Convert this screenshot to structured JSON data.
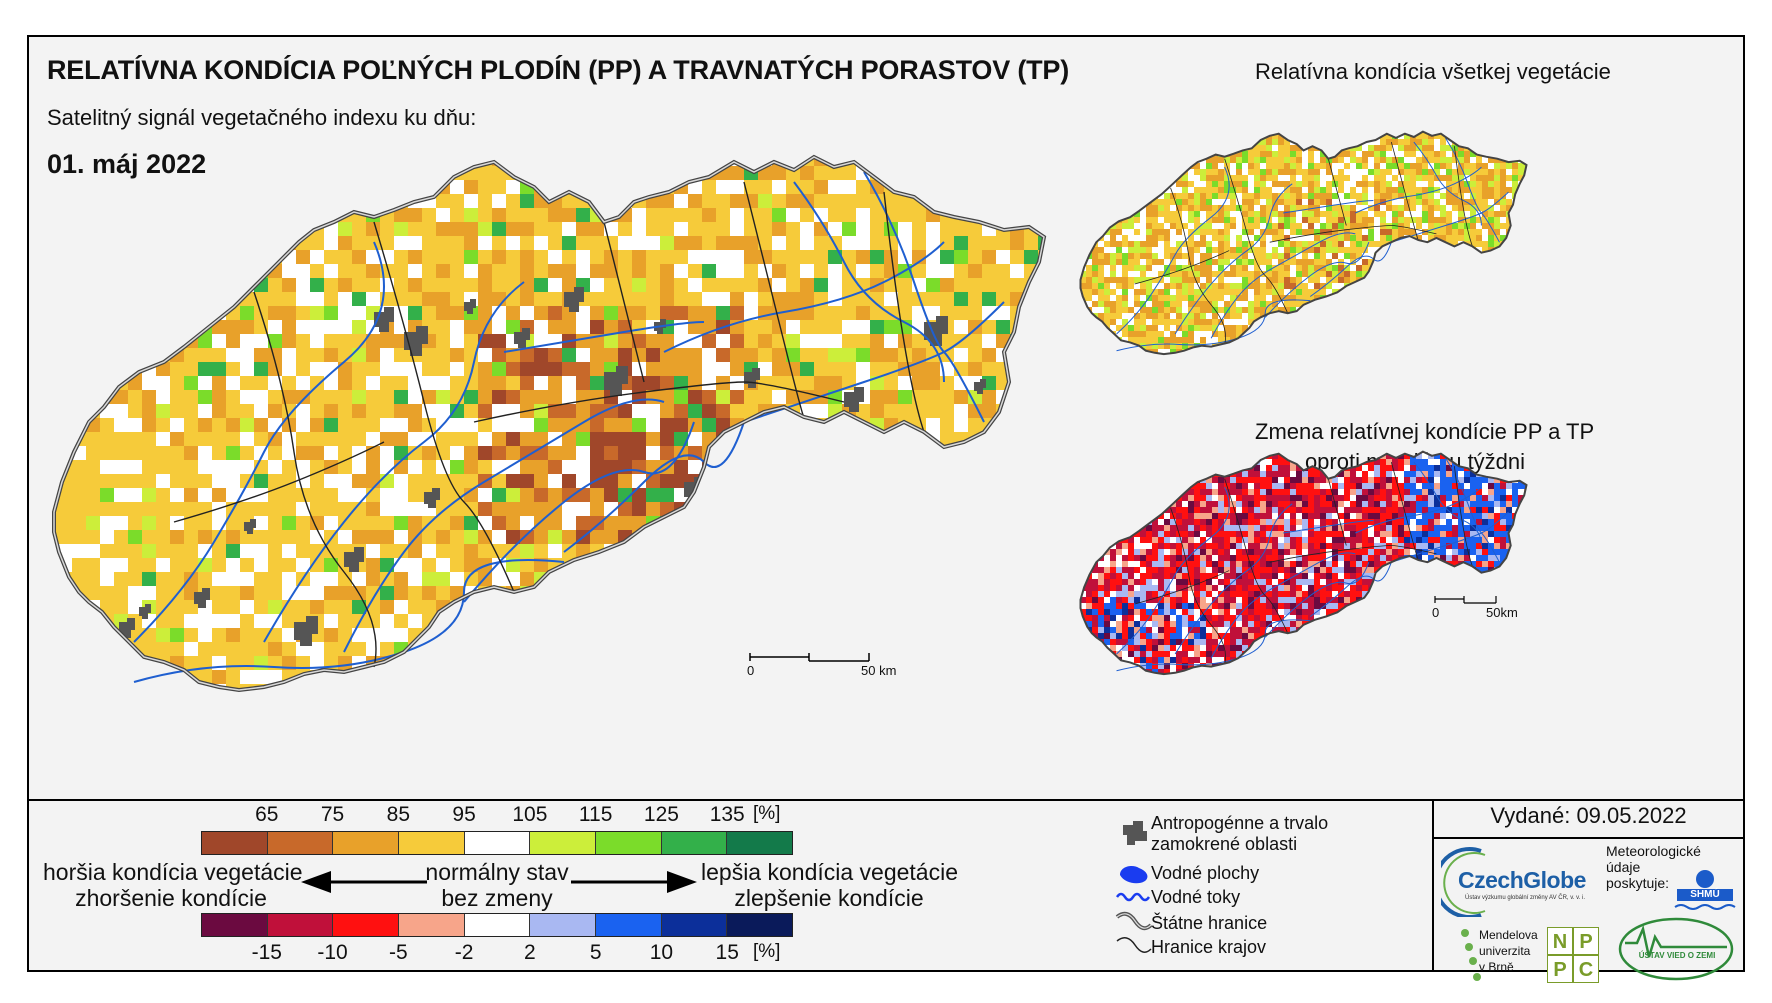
{
  "header": {
    "title": "RELATÍVNA KONDÍCIA POĽNÝCH PLODÍN (PP) A TRAVNATÝCH PORASTOV (TP)",
    "subtitle": "Satelitný signál vegetačného indexu ku dňu:",
    "date": "01. máj 2022"
  },
  "side_maps": {
    "all_vegetation_title": "Relatívna kondícia všetkej vegetácie",
    "change_title_line1": "Zmena relatívnej kondície PP a TP",
    "change_title_line2": "oproti minulému týždni"
  },
  "scalebars": {
    "main": {
      "start": "0",
      "end": "50 km"
    },
    "small": {
      "start": "0",
      "end": "50km"
    }
  },
  "legend_condition": {
    "ticks": [
      "65",
      "75",
      "85",
      "95",
      "105",
      "115",
      "125",
      "135"
    ],
    "unit": "[%]",
    "colors": [
      "#a0472a",
      "#c8692a",
      "#e8a12a",
      "#f6cb3a",
      "#ffffff",
      "#ccee3a",
      "#7bdc2a",
      "#33b04a",
      "#137a4a"
    ]
  },
  "legend_change": {
    "ticks": [
      "-15",
      "-10",
      "-5",
      "-2",
      "2",
      "5",
      "10",
      "15"
    ],
    "unit": "[%]",
    "colors": [
      "#6b0a40",
      "#c0103a",
      "#ff1010",
      "#f7a58a",
      "#ffffff",
      "#a9b8f2",
      "#1a62f0",
      "#0c2f9a",
      "#0a1a5a"
    ]
  },
  "legend_text": {
    "worse_line1": "horšia kondícia vegetácie",
    "worse_line2": "zhoršenie kondície",
    "normal_line1": "normálny stav",
    "normal_line2": "bez zmeny",
    "better_line1": "lepšia kondícia vegetácie",
    "better_line2": "zlepšenie kondície"
  },
  "map_key": {
    "urban_line1": "Antropogénne a trvalo",
    "urban_line2": "zamokrené oblasti",
    "water_bodies": "Vodné plochy",
    "streams": "Vodné toky",
    "state_border": "Štátne hranice",
    "region_border": "Hranice krajov",
    "urban_color": "#555555",
    "water_color": "#1a3cf0"
  },
  "issued": "Vydané: 09.05.2022",
  "logos": {
    "czechglobe": "CzechGlobe",
    "czechglobe_sub": "Ústav výzkumu globální změny AV ČR, v. v. i.",
    "met_line1": "Meteorologické",
    "met_line2": "údaje",
    "met_line3": "poskytuje:",
    "shmu": "SHMÚ",
    "mendel_line1": "Mendelova",
    "mendel_line2": "univerzita",
    "mendel_line3": "v Brně",
    "nppc_letters": [
      "N",
      "P",
      "P",
      "C"
    ],
    "uvz": "ÚSTAV VIED O ZEMI"
  }
}
